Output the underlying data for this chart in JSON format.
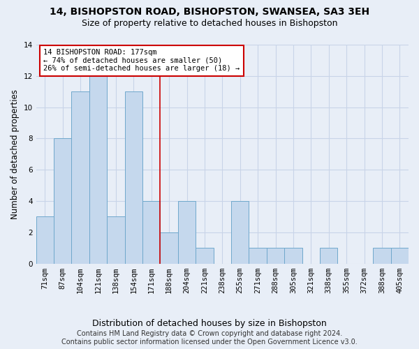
{
  "title_line1": "14, BISHOPSTON ROAD, BISHOPSTON, SWANSEA, SA3 3EH",
  "title_line2": "Size of property relative to detached houses in Bishopston",
  "xlabel": "Distribution of detached houses by size in Bishopston",
  "ylabel": "Number of detached properties",
  "categories": [
    "71sqm",
    "87sqm",
    "104sqm",
    "121sqm",
    "138sqm",
    "154sqm",
    "171sqm",
    "188sqm",
    "204sqm",
    "221sqm",
    "238sqm",
    "255sqm",
    "271sqm",
    "288sqm",
    "305sqm",
    "321sqm",
    "338sqm",
    "355sqm",
    "372sqm",
    "388sqm",
    "405sqm"
  ],
  "values": [
    3,
    8,
    11,
    12,
    3,
    11,
    4,
    2,
    4,
    1,
    0,
    4,
    1,
    1,
    1,
    0,
    1,
    0,
    0,
    1,
    1
  ],
  "bar_color": "#c5d8ed",
  "bar_edge_color": "#6fa8cc",
  "annotation_text": "14 BISHOPSTON ROAD: 177sqm\n← 74% of detached houses are smaller (50)\n26% of semi-detached houses are larger (18) →",
  "annotation_box_color": "#ffffff",
  "annotation_box_edge_color": "#cc0000",
  "property_line_x": 6.5,
  "property_line_color": "#cc0000",
  "ylim": [
    0,
    14
  ],
  "yticks": [
    0,
    2,
    4,
    6,
    8,
    10,
    12,
    14
  ],
  "footnote": "Contains HM Land Registry data © Crown copyright and database right 2024.\nContains public sector information licensed under the Open Government Licence v3.0.",
  "bg_color": "#e8eef7",
  "plot_bg_color": "#e8eef7",
  "grid_color": "#c8d4e8",
  "title_fontsize": 10,
  "subtitle_fontsize": 9,
  "xlabel_fontsize": 9,
  "ylabel_fontsize": 8.5,
  "tick_fontsize": 7.5,
  "footnote_fontsize": 7
}
